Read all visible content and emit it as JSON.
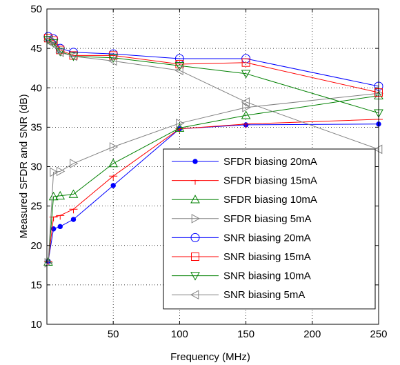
{
  "chart_data": {
    "type": "line",
    "xlabel": "Frequency (MHz)",
    "ylabel": "Measured SFDR and SNR (dB)",
    "xlim": [
      0,
      250
    ],
    "ylim": [
      10,
      50
    ],
    "xticks": [
      50,
      100,
      150,
      200,
      250
    ],
    "yticks": [
      10,
      15,
      20,
      25,
      30,
      35,
      40,
      45,
      50
    ],
    "grid": true,
    "legend_position": "bottom-right",
    "series": [
      {
        "name": "SFDR biasing 20mA",
        "color": "#0000ff",
        "marker": "dot",
        "x": [
          1,
          5,
          10,
          20,
          50,
          100,
          150,
          250
        ],
        "y": [
          18.0,
          22.1,
          22.4,
          23.3,
          27.6,
          34.8,
          35.3,
          35.4
        ]
      },
      {
        "name": "SFDR biasing 15mA",
        "color": "#ff0000",
        "marker": "tee",
        "x": [
          1,
          5,
          10,
          20,
          50,
          100,
          150,
          250
        ],
        "y": [
          18.0,
          23.6,
          23.8,
          24.6,
          28.8,
          34.8,
          35.4,
          36.0
        ]
      },
      {
        "name": "SFDR biasing 10mA",
        "color": "#008000",
        "marker": "triangle-up",
        "x": [
          1,
          5,
          10,
          20,
          50,
          100,
          150,
          250
        ],
        "y": [
          17.9,
          26.2,
          26.3,
          26.5,
          30.4,
          34.9,
          36.5,
          39.0
        ]
      },
      {
        "name": "SFDR biasing 5mA",
        "color": "#808080",
        "marker": "triangle-right",
        "x": [
          1,
          5,
          10,
          20,
          50,
          100,
          150,
          250
        ],
        "y": [
          17.8,
          29.3,
          29.4,
          30.4,
          32.5,
          35.5,
          37.5,
          39.3
        ]
      },
      {
        "name": "SNR biasing 20mA",
        "color": "#0000ff",
        "marker": "circle",
        "x": [
          1,
          5,
          10,
          20,
          50,
          100,
          150,
          250
        ],
        "y": [
          46.5,
          46.2,
          45.0,
          44.5,
          44.3,
          43.7,
          43.7,
          40.2
        ]
      },
      {
        "name": "SNR biasing 15mA",
        "color": "#ff0000",
        "marker": "square",
        "x": [
          1,
          5,
          10,
          20,
          50,
          100,
          150,
          250
        ],
        "y": [
          46.3,
          46.0,
          44.8,
          44.1,
          44.1,
          43.0,
          43.2,
          39.4
        ]
      },
      {
        "name": "SNR biasing 10mA",
        "color": "#008000",
        "marker": "triangle-down",
        "x": [
          1,
          5,
          10,
          20,
          50,
          100,
          150,
          250
        ],
        "y": [
          46.1,
          45.7,
          44.6,
          44.0,
          43.8,
          42.8,
          41.8,
          36.8
        ]
      },
      {
        "name": "SNR biasing 5mA",
        "color": "#808080",
        "marker": "triangle-left",
        "x": [
          1,
          5,
          10,
          20,
          50,
          100,
          150,
          250
        ],
        "y": [
          46.0,
          45.5,
          44.5,
          44.0,
          43.4,
          42.2,
          38.2,
          32.2
        ]
      }
    ]
  }
}
